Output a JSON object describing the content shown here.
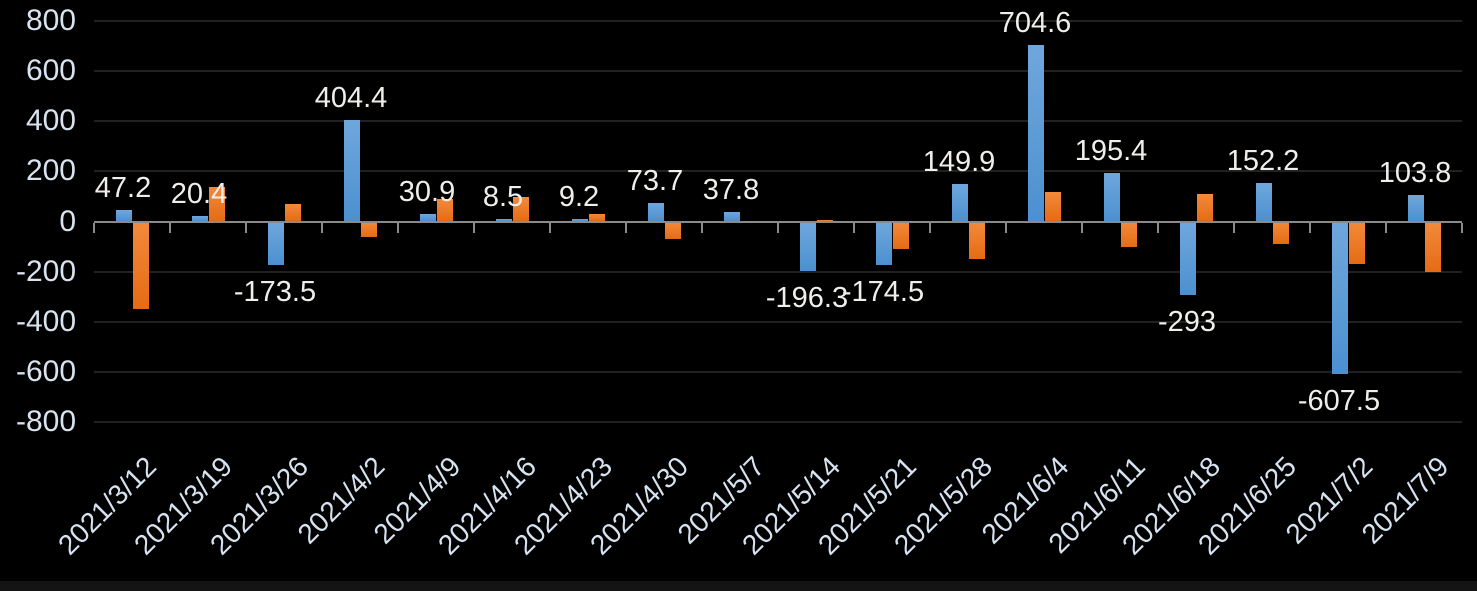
{
  "chart_data": {
    "type": "bar",
    "title": "",
    "categories": [
      "2021/3/12",
      "2021/3/19",
      "2021/3/26",
      "2021/4/2",
      "2021/4/9",
      "2021/4/16",
      "2021/4/23",
      "2021/4/30",
      "2021/5/7",
      "2021/5/14",
      "2021/5/21",
      "2021/5/28",
      "2021/6/4",
      "2021/6/11",
      "2021/6/18",
      "2021/6/25",
      "2021/7/2",
      "2021/7/9"
    ],
    "series": [
      {
        "name": "blue-series",
        "color": "#5B9BD5",
        "values": [
          47.2,
          20.4,
          -173.5,
          404.4,
          30.9,
          8.5,
          9.2,
          73.7,
          37.8,
          -196.3,
          -174.5,
          149.9,
          704.6,
          195.4,
          -293,
          152.2,
          -607.5,
          103.8
        ]
      },
      {
        "name": "orange-series",
        "color": "#ED7D31",
        "values": [
          -350,
          138,
          70,
          -60,
          90,
          99,
          30,
          -70,
          0,
          5,
          -110,
          -150,
          117,
          -100,
          108,
          -90,
          -170,
          -200
        ]
      }
    ],
    "data_labels": {
      "series_index": 0,
      "values": [
        "47.2",
        "20.4",
        "-173.5",
        "404.4",
        "30.9",
        "8.5",
        "9.2",
        "73.7",
        "37.8",
        "-196.3",
        "-174.5",
        "149.9",
        "704.6",
        "195.4",
        "-293",
        "152.2",
        "-607.5",
        "103.8"
      ]
    },
    "y_axis": {
      "tick_labels": [
        "800",
        "600",
        "400",
        "200",
        "0",
        "-200",
        "-400",
        "-600",
        "-800"
      ],
      "tick_values": [
        800,
        600,
        400,
        200,
        0,
        -200,
        -400,
        -600,
        -800
      ],
      "min": -800,
      "max": 800
    },
    "x_axis": {
      "rotation_degrees": 45
    },
    "grid": true,
    "legend": false,
    "colors": {
      "background": "#000000",
      "gridline": "#212121",
      "axis": "#8A8A8A",
      "y_tick_label": "#D9E3EF",
      "x_tick_label": "#D6E2F0",
      "data_label": "#F0EEEB",
      "bar_blue": "#5B9BD5",
      "bar_orange": "#ED7D31"
    }
  }
}
